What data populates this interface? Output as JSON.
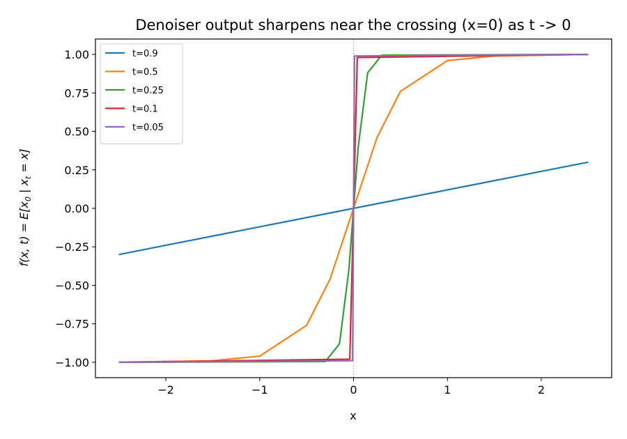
{
  "chart_data": {
    "type": "line",
    "title": "Denoiser output sharpens near the crossing (x=0) as t -> 0",
    "xlabel": "x",
    "ylabel": "f(x, t) = E[x0 | xt = x]",
    "ylabel_parts": [
      "f(x, t) = E[x",
      "0",
      " | x",
      "t",
      " = x]"
    ],
    "xlim": [
      -2.75,
      2.75
    ],
    "ylim": [
      -1.1,
      1.1
    ],
    "x_domain": [
      -2.5,
      2.5
    ],
    "xticks": [
      -2,
      -1,
      0,
      1,
      2
    ],
    "xtick_labels": [
      "−2",
      "−1",
      "0",
      "1",
      "2"
    ],
    "yticks": [
      -1.0,
      -0.75,
      -0.5,
      -0.25,
      0.0,
      0.25,
      0.5,
      0.75,
      1.0
    ],
    "ytick_labels": [
      "−1.00",
      "−0.75",
      "−0.50",
      "−0.25",
      "0.00",
      "0.25",
      "0.50",
      "0.75",
      "1.00"
    ],
    "grid": false,
    "legend_position": "upper-left",
    "reference_line": {
      "x": 0,
      "style": "dotted",
      "color": "#999999"
    },
    "series": [
      {
        "name": "t=0.9",
        "t": 0.9,
        "color": "#1f77b4",
        "x": [
          -2.5,
          -1.5,
          -0.5,
          0,
          0.5,
          1.5,
          2.5
        ],
        "y": [
          -0.3,
          -0.18,
          -0.06,
          0.0,
          0.06,
          0.18,
          0.3
        ]
      },
      {
        "name": "t=0.5",
        "t": 0.5,
        "color": "#ff7f0e",
        "x": [
          -2.5,
          -1.5,
          -1.0,
          -0.5,
          -0.25,
          0,
          0.25,
          0.5,
          1.0,
          1.5,
          2.5
        ],
        "y": [
          -1.0,
          -0.99,
          -0.96,
          -0.76,
          -0.46,
          0.0,
          0.46,
          0.76,
          0.96,
          0.99,
          1.0
        ]
      },
      {
        "name": "t=0.25",
        "t": 0.25,
        "color": "#2ca02c",
        "x": [
          -2.5,
          -0.3,
          -0.15,
          -0.05,
          0,
          0.05,
          0.15,
          0.3,
          2.5
        ],
        "y": [
          -1.0,
          -0.995,
          -0.88,
          -0.4,
          0.0,
          0.4,
          0.88,
          0.995,
          1.0
        ]
      },
      {
        "name": "t=0.1",
        "t": 0.1,
        "color": "#d62728",
        "x": [
          -2.5,
          -0.04,
          0,
          0.04,
          2.5
        ],
        "y": [
          -1.0,
          -0.98,
          0.0,
          0.98,
          1.0
        ]
      },
      {
        "name": "t=0.05",
        "t": 0.05,
        "color": "#9467bd",
        "x": [
          -2.5,
          -0.01,
          0,
          0.01,
          2.5
        ],
        "y": [
          -1.0,
          -0.99,
          0.0,
          0.99,
          1.0
        ]
      }
    ]
  }
}
